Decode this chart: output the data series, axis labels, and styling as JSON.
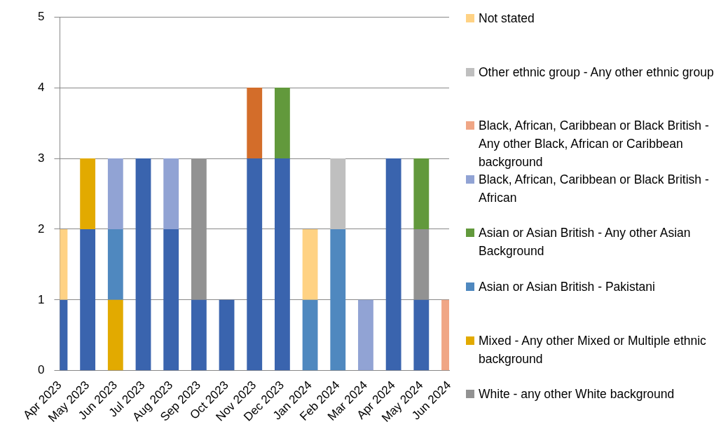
{
  "chart_data": {
    "type": "bar",
    "stacked": true,
    "categories": [
      "Apr 2023",
      "May 2023",
      "Jun 2023",
      "Jul 2023",
      "Aug 2023",
      "Sep 2023",
      "Oct 2023",
      "Nov 2023",
      "Dec 2023",
      "Jan 2024",
      "Feb 2024",
      "Mar 2024",
      "Apr 2024",
      "May 2024",
      "Jun 2024"
    ],
    "series": [
      {
        "color": "#3a64ae",
        "values": [
          1,
          2,
          null,
          3,
          2,
          1,
          1,
          3,
          3,
          null,
          null,
          null,
          3,
          1,
          null
        ]
      },
      {
        "name": "White - any other White background",
        "color": "#929292",
        "values": [
          null,
          null,
          null,
          null,
          null,
          2,
          null,
          null,
          null,
          null,
          null,
          null,
          null,
          1,
          null
        ]
      },
      {
        "name": "Mixed - Any other Mixed or Multiple ethnic background",
        "color": "#e2aa00",
        "values": [
          null,
          1,
          1,
          null,
          null,
          null,
          null,
          null,
          null,
          null,
          null,
          null,
          null,
          null,
          null
        ]
      },
      {
        "name": "Asian or Asian British - Pakistani",
        "color": "#4f88bf",
        "values": [
          null,
          null,
          1,
          null,
          null,
          null,
          null,
          null,
          null,
          1,
          2,
          null,
          null,
          null,
          null
        ]
      },
      {
        "name": "Asian or Asian British - Any other Asian Background",
        "color": "#62993c",
        "values": [
          null,
          null,
          null,
          null,
          null,
          null,
          null,
          null,
          1,
          null,
          null,
          null,
          null,
          1,
          null
        ]
      },
      {
        "color": "#d36d2a",
        "values": [
          null,
          null,
          null,
          null,
          null,
          null,
          null,
          1,
          null,
          null,
          null,
          null,
          null,
          null,
          null
        ]
      },
      {
        "name": "Black, African, Caribbean or Black British - African",
        "color": "#91a3d4",
        "values": [
          null,
          null,
          1,
          null,
          1,
          null,
          null,
          null,
          null,
          null,
          null,
          1,
          null,
          null,
          null
        ]
      },
      {
        "name": "Black, African, Caribbean or Black British - Any other Black, African or Caribbean background",
        "color": "#f0a685",
        "values": [
          null,
          null,
          null,
          null,
          null,
          null,
          null,
          null,
          null,
          null,
          null,
          null,
          null,
          null,
          1
        ]
      },
      {
        "name": "Other ethnic group - Any other ethnic group",
        "color": "#bfbfbf",
        "values": [
          null,
          null,
          null,
          null,
          null,
          null,
          null,
          null,
          null,
          null,
          1,
          null,
          null,
          null,
          null
        ]
      },
      {
        "name": "Not stated",
        "color": "#ffd284",
        "values": [
          1,
          null,
          null,
          null,
          null,
          null,
          null,
          null,
          null,
          1,
          null,
          null,
          null,
          null,
          null
        ]
      }
    ],
    "ylim": [
      0,
      5
    ],
    "yticks": [
      0,
      1,
      2,
      3,
      4,
      5
    ],
    "grid": "y",
    "legend": "right"
  }
}
